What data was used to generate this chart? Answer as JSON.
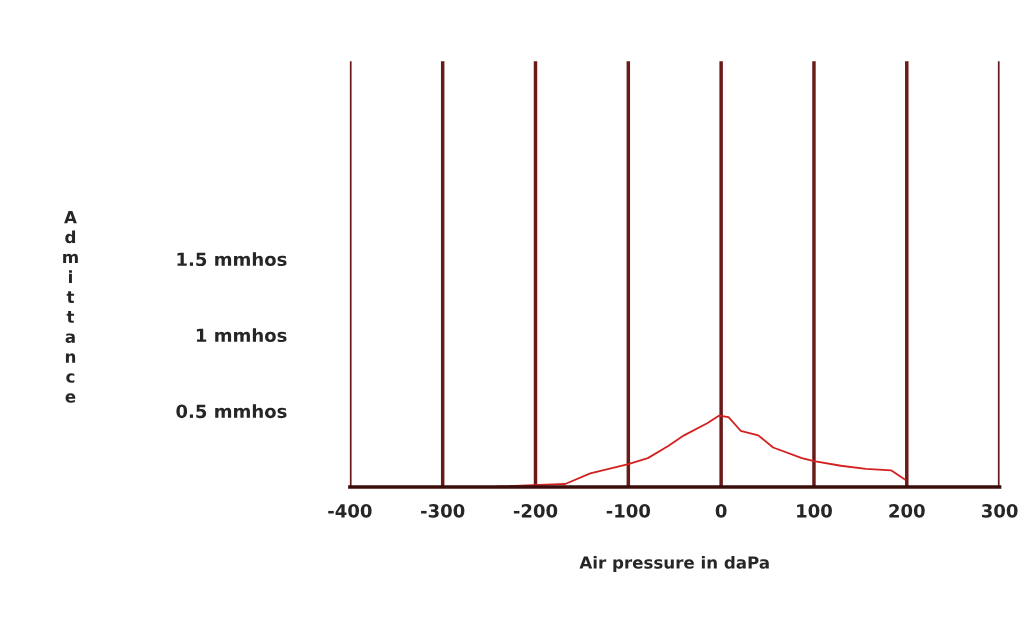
{
  "chart_data": {
    "type": "line",
    "xlabel": "Air pressure in daPa",
    "ylabel": "Admittance",
    "x": [
      -254,
      -168,
      -141,
      -100,
      -79,
      -57,
      -40,
      -15,
      -2,
      8,
      21,
      40,
      56,
      87,
      100,
      129,
      156,
      183,
      198
    ],
    "series": [
      {
        "color": "#d42020",
        "values": [
          0,
          0.02,
          0.09,
          0.15,
          0.19,
          0.27,
          0.34,
          0.42,
          0.47,
          0.46,
          0.37,
          0.34,
          0.26,
          0.19,
          0.17,
          0.14,
          0.12,
          0.11,
          0.05
        ]
      }
    ],
    "xlim": [
      -400,
      300
    ],
    "xticks": [
      -400,
      -300,
      -200,
      -100,
      0,
      100,
      200,
      300
    ],
    "ylim": [
      0,
      2.8
    ],
    "yticks": [
      {
        "value": 0.5,
        "label": "0.5 mmhos"
      },
      {
        "value": 1,
        "label": "1 mmhos"
      },
      {
        "value": 1.5,
        "label": "1.5 mmhos"
      }
    ],
    "grid": "x",
    "marker": "none",
    "line_style": "solid",
    "legend": false
  }
}
